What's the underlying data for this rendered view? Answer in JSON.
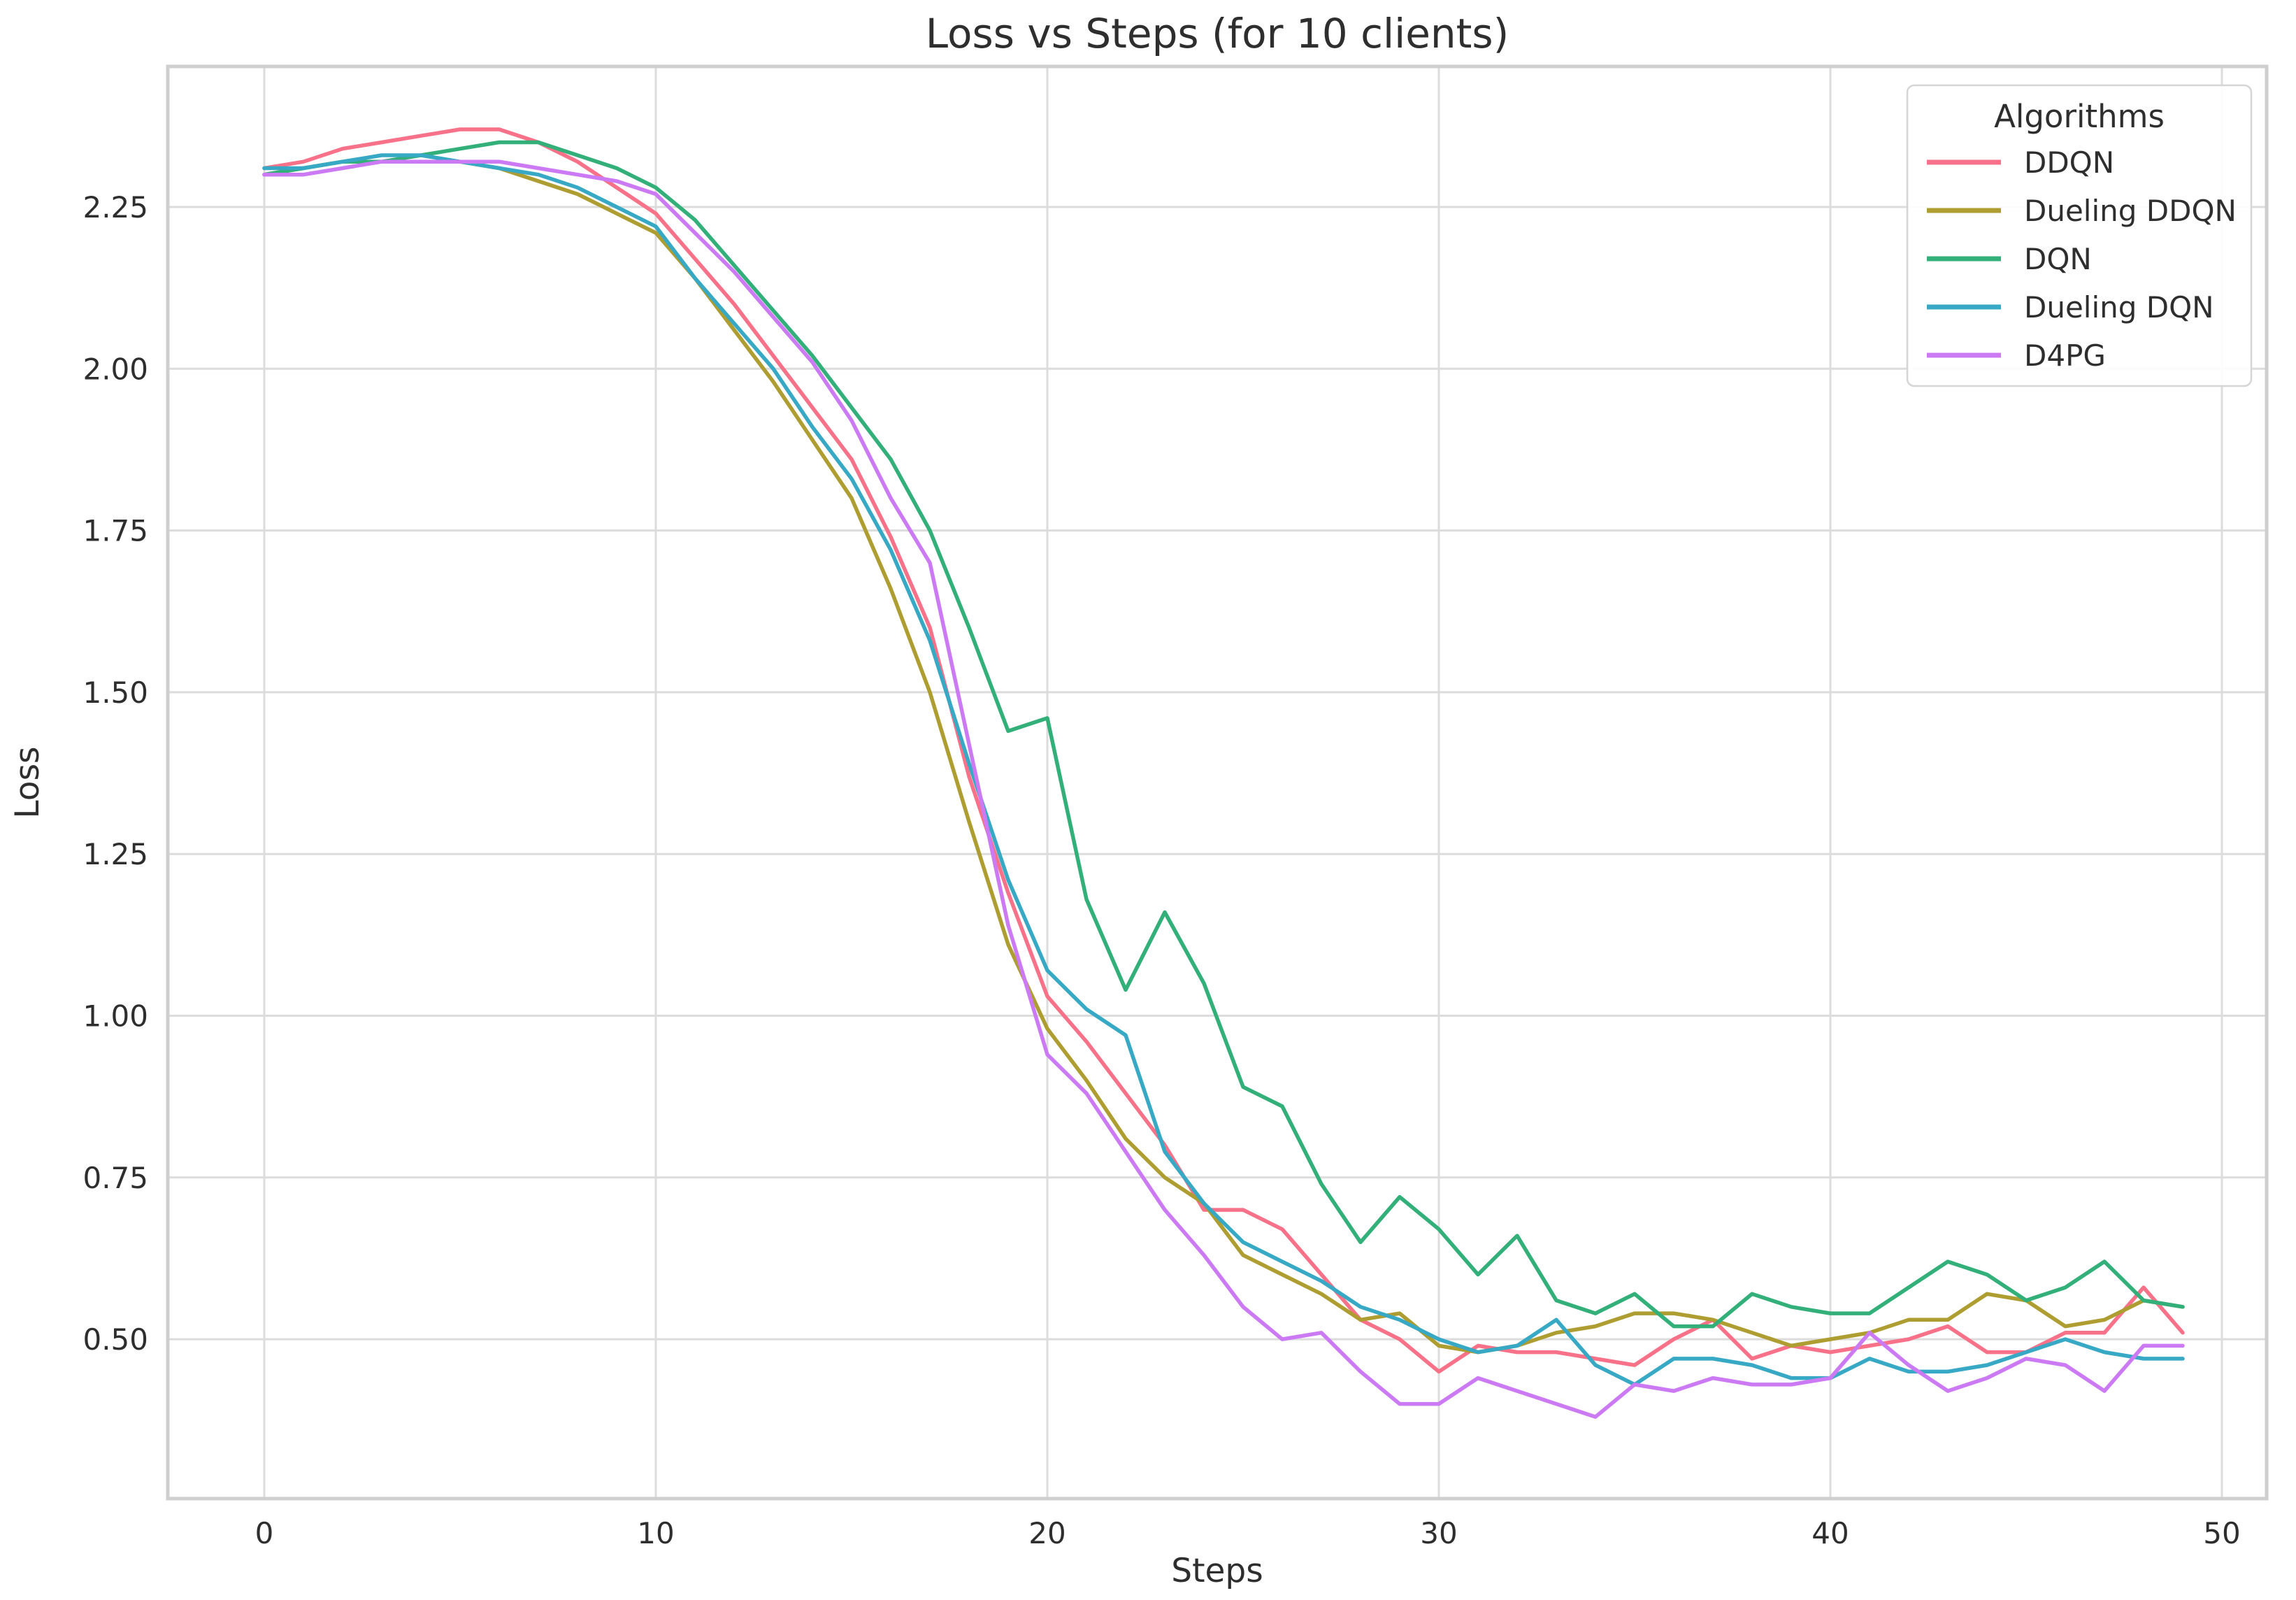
{
  "title": "Loss vs Steps (for 10 clients)",
  "chart_data": {
    "type": "line",
    "title": "Loss vs Steps (for 10 clients)",
    "xlabel": "Steps",
    "ylabel": "Loss",
    "grid": true,
    "xlim": [
      -2.45,
      51.15
    ],
    "ylim": [
      0.28,
      2.47
    ],
    "x_ticks": [
      0,
      10,
      20,
      30,
      40,
      50
    ],
    "x_tick_labels": [
      "0",
      "10",
      "20",
      "30",
      "40",
      "50"
    ],
    "y_ticks": [
      0.5,
      0.75,
      1.0,
      1.25,
      1.5,
      1.75,
      2.0,
      2.25
    ],
    "y_tick_labels": [
      "0.50",
      "0.75",
      "1.00",
      "1.25",
      "1.50",
      "1.75",
      "2.00",
      "2.25"
    ],
    "x": [
      0,
      1,
      2,
      3,
      4,
      5,
      6,
      7,
      8,
      9,
      10,
      11,
      12,
      13,
      14,
      15,
      16,
      17,
      18,
      19,
      20,
      21,
      22,
      23,
      24,
      25,
      26,
      27,
      28,
      29,
      30,
      31,
      32,
      33,
      34,
      35,
      36,
      37,
      38,
      39,
      40,
      41,
      42,
      43,
      44,
      45,
      46,
      47,
      48,
      49
    ],
    "legend": {
      "title": "Algorithms",
      "position": "upper right"
    },
    "series": [
      {
        "name": "DDQN",
        "color": "#f77189",
        "values": [
          2.31,
          2.32,
          2.34,
          2.35,
          2.36,
          2.37,
          2.37,
          2.35,
          2.32,
          2.28,
          2.24,
          2.17,
          2.1,
          2.02,
          1.94,
          1.86,
          1.74,
          1.6,
          1.37,
          1.19,
          1.03,
          0.96,
          0.88,
          0.8,
          0.7,
          0.7,
          0.67,
          0.6,
          0.53,
          0.5,
          0.45,
          0.49,
          0.48,
          0.48,
          0.47,
          0.46,
          0.5,
          0.53,
          0.47,
          0.49,
          0.48,
          0.49,
          0.5,
          0.52,
          0.48,
          0.48,
          0.51,
          0.51,
          0.58,
          0.51
        ]
      },
      {
        "name": "Dueling DDQN",
        "color": "#ae9d31",
        "values": [
          2.3,
          2.31,
          2.32,
          2.32,
          2.32,
          2.32,
          2.31,
          2.29,
          2.27,
          2.24,
          2.21,
          2.14,
          2.06,
          1.98,
          1.89,
          1.8,
          1.66,
          1.5,
          1.3,
          1.11,
          0.98,
          0.9,
          0.81,
          0.75,
          0.71,
          0.63,
          0.6,
          0.57,
          0.53,
          0.54,
          0.49,
          0.48,
          0.49,
          0.51,
          0.52,
          0.54,
          0.54,
          0.53,
          0.51,
          0.49,
          0.5,
          0.51,
          0.53,
          0.53,
          0.57,
          0.56,
          0.52,
          0.53,
          0.56,
          0.55
        ]
      },
      {
        "name": "DQN",
        "color": "#33b07a",
        "values": [
          2.3,
          2.31,
          2.32,
          2.32,
          2.33,
          2.34,
          2.35,
          2.35,
          2.33,
          2.31,
          2.28,
          2.23,
          2.16,
          2.09,
          2.02,
          1.94,
          1.86,
          1.75,
          1.6,
          1.44,
          1.46,
          1.18,
          1.04,
          1.16,
          1.05,
          0.89,
          0.86,
          0.74,
          0.65,
          0.72,
          0.67,
          0.6,
          0.66,
          0.56,
          0.54,
          0.57,
          0.52,
          0.52,
          0.57,
          0.55,
          0.54,
          0.54,
          0.58,
          0.62,
          0.6,
          0.56,
          0.58,
          0.62,
          0.56,
          0.55
        ]
      },
      {
        "name": "Dueling DQN",
        "color": "#38a9c5",
        "values": [
          2.31,
          2.31,
          2.32,
          2.33,
          2.33,
          2.32,
          2.31,
          2.3,
          2.28,
          2.25,
          2.22,
          2.14,
          2.07,
          2.0,
          1.91,
          1.83,
          1.72,
          1.58,
          1.39,
          1.21,
          1.07,
          1.01,
          0.97,
          0.79,
          0.71,
          0.65,
          0.62,
          0.59,
          0.55,
          0.53,
          0.5,
          0.48,
          0.49,
          0.53,
          0.46,
          0.43,
          0.47,
          0.47,
          0.46,
          0.44,
          0.44,
          0.47,
          0.45,
          0.45,
          0.46,
          0.48,
          0.5,
          0.48,
          0.47,
          0.47
        ]
      },
      {
        "name": "D4PG",
        "color": "#cc7af4",
        "values": [
          2.3,
          2.3,
          2.31,
          2.32,
          2.32,
          2.32,
          2.32,
          2.31,
          2.3,
          2.29,
          2.27,
          2.21,
          2.15,
          2.08,
          2.01,
          1.92,
          1.8,
          1.7,
          1.42,
          1.14,
          0.94,
          0.88,
          0.79,
          0.7,
          0.63,
          0.55,
          0.5,
          0.51,
          0.45,
          0.4,
          0.4,
          0.44,
          0.42,
          0.4,
          0.38,
          0.43,
          0.42,
          0.44,
          0.43,
          0.43,
          0.44,
          0.51,
          0.46,
          0.42,
          0.44,
          0.47,
          0.46,
          0.42,
          0.49,
          0.49
        ]
      }
    ]
  },
  "colors": {
    "background": "#ffffff",
    "grid": "#dcdcdc",
    "spine": "#cfcfcf",
    "text": "#2e2e2e"
  }
}
